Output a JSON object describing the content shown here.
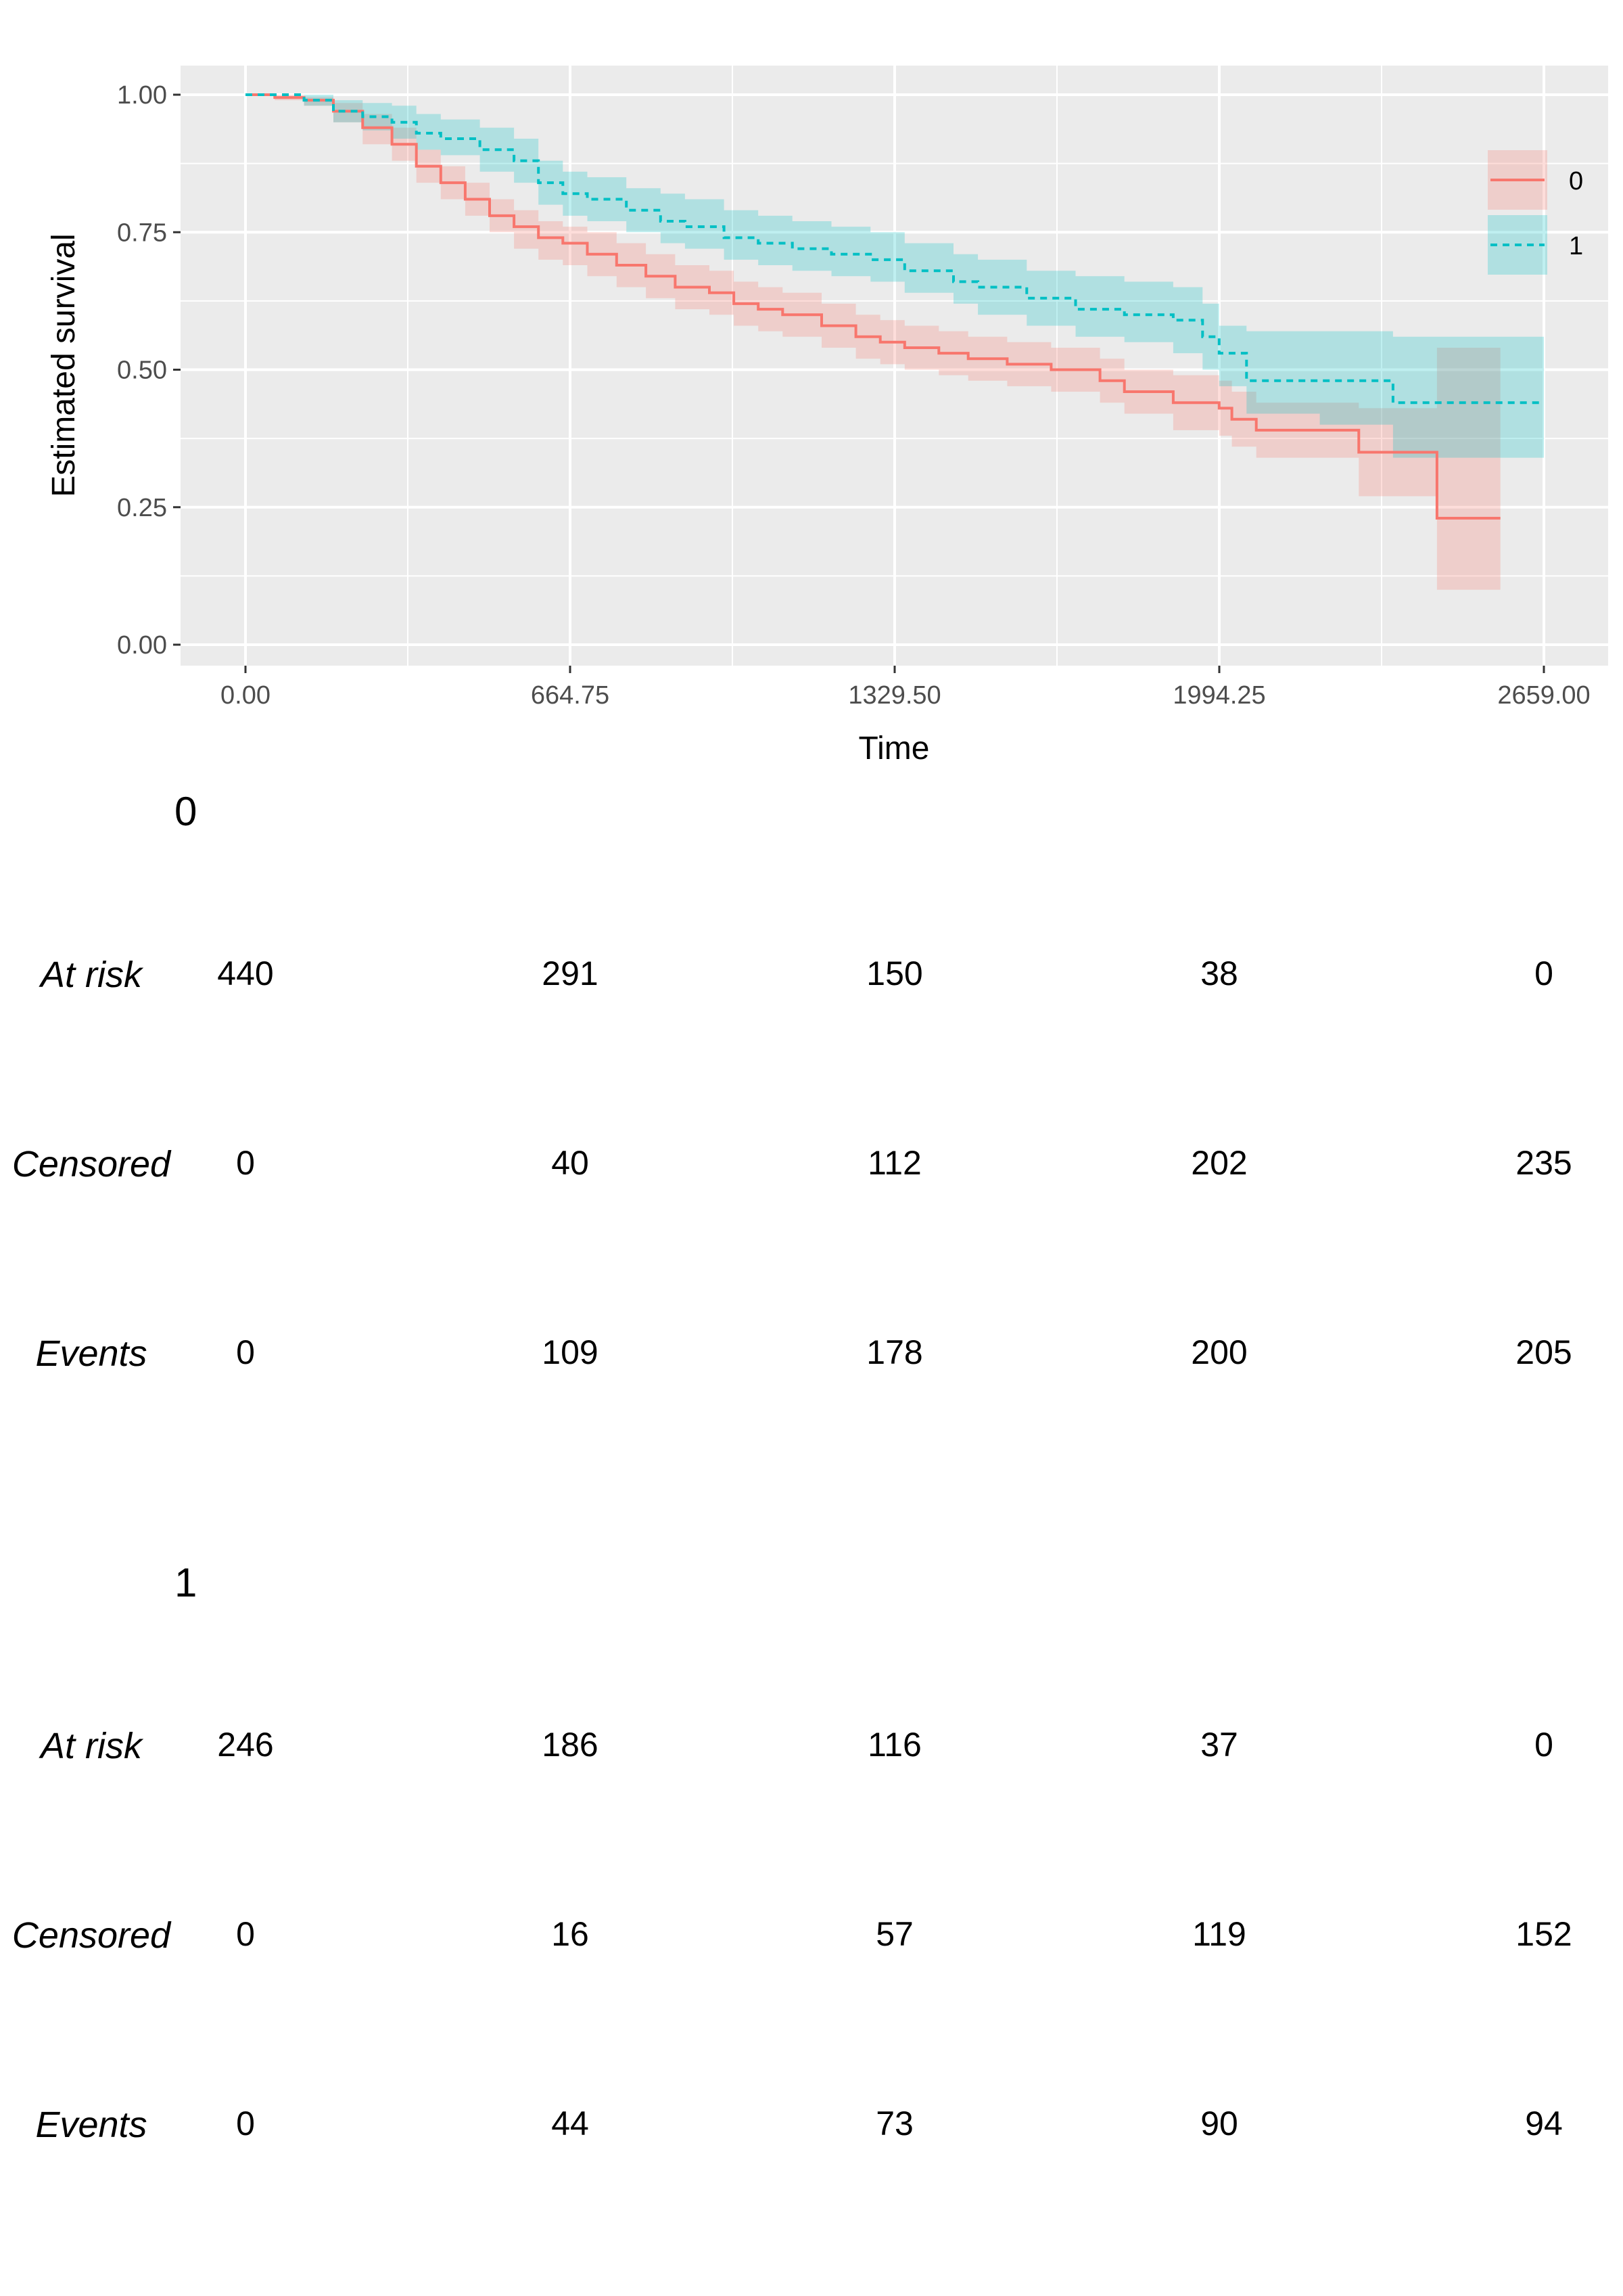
{
  "chart_data": {
    "type": "line",
    "title": "",
    "xlabel": "Time",
    "ylabel": "Estimated survival",
    "xlim": [
      0,
      2659
    ],
    "ylim": [
      0,
      1
    ],
    "x_ticks": [
      "0.00",
      "664.75",
      "1329.50",
      "1994.25",
      "2659.00"
    ],
    "x_tick_values": [
      0,
      664.75,
      1329.5,
      1994.25,
      2659
    ],
    "y_ticks": [
      "0.00",
      "0.25",
      "0.50",
      "0.75",
      "1.00"
    ],
    "y_tick_values": [
      0,
      0.25,
      0.5,
      0.75,
      1
    ],
    "grid": true,
    "legend_position": "right",
    "series": [
      {
        "name": "0",
        "color": "#F8766D",
        "line_style": "solid",
        "x": [
          0,
          60,
          120,
          180,
          240,
          300,
          350,
          400,
          450,
          500,
          550,
          600,
          650,
          700,
          760,
          820,
          880,
          950,
          1000,
          1050,
          1100,
          1180,
          1250,
          1300,
          1350,
          1420,
          1480,
          1560,
          1650,
          1750,
          1800,
          1900,
          1994,
          2020,
          2070,
          2280,
          2440,
          2570
        ],
        "y": [
          1.0,
          0.995,
          0.99,
          0.97,
          0.94,
          0.91,
          0.87,
          0.84,
          0.81,
          0.78,
          0.76,
          0.74,
          0.73,
          0.71,
          0.69,
          0.67,
          0.65,
          0.64,
          0.62,
          0.61,
          0.6,
          0.58,
          0.56,
          0.55,
          0.54,
          0.53,
          0.52,
          0.51,
          0.5,
          0.48,
          0.46,
          0.44,
          0.43,
          0.41,
          0.39,
          0.35,
          0.23,
          0.23
        ],
        "lower": [
          1.0,
          0.99,
          0.98,
          0.95,
          0.91,
          0.88,
          0.84,
          0.81,
          0.78,
          0.75,
          0.72,
          0.7,
          0.69,
          0.67,
          0.65,
          0.63,
          0.61,
          0.6,
          0.58,
          0.57,
          0.56,
          0.54,
          0.52,
          0.51,
          0.5,
          0.49,
          0.48,
          0.47,
          0.46,
          0.44,
          0.42,
          0.39,
          0.38,
          0.36,
          0.34,
          0.27,
          0.1,
          0.1
        ],
        "upper": [
          1.0,
          1.0,
          0.995,
          0.985,
          0.965,
          0.94,
          0.9,
          0.87,
          0.84,
          0.81,
          0.79,
          0.77,
          0.76,
          0.75,
          0.73,
          0.71,
          0.69,
          0.68,
          0.66,
          0.65,
          0.64,
          0.62,
          0.6,
          0.59,
          0.58,
          0.57,
          0.56,
          0.55,
          0.54,
          0.52,
          0.5,
          0.49,
          0.48,
          0.46,
          0.44,
          0.43,
          0.54,
          0.54
        ]
      },
      {
        "name": "1",
        "color": "#00BFC4",
        "line_style": "dashed",
        "x": [
          0,
          60,
          120,
          180,
          240,
          300,
          350,
          400,
          480,
          550,
          600,
          650,
          700,
          780,
          850,
          900,
          980,
          1050,
          1120,
          1200,
          1280,
          1350,
          1450,
          1500,
          1600,
          1700,
          1800,
          1900,
          1960,
          1994,
          2050,
          2200,
          2350,
          2659
        ],
        "y": [
          1.0,
          1.0,
          0.99,
          0.97,
          0.96,
          0.95,
          0.93,
          0.92,
          0.9,
          0.88,
          0.84,
          0.82,
          0.81,
          0.79,
          0.77,
          0.76,
          0.74,
          0.73,
          0.72,
          0.71,
          0.7,
          0.68,
          0.66,
          0.65,
          0.63,
          0.61,
          0.6,
          0.59,
          0.56,
          0.53,
          0.48,
          0.48,
          0.44,
          0.44
        ],
        "lower": [
          1.0,
          1.0,
          0.98,
          0.95,
          0.935,
          0.92,
          0.9,
          0.89,
          0.86,
          0.84,
          0.8,
          0.78,
          0.77,
          0.75,
          0.73,
          0.72,
          0.7,
          0.69,
          0.68,
          0.67,
          0.66,
          0.64,
          0.62,
          0.6,
          0.58,
          0.56,
          0.55,
          0.53,
          0.5,
          0.47,
          0.42,
          0.4,
          0.34,
          0.34
        ],
        "upper": [
          1.0,
          1.0,
          1.0,
          0.99,
          0.985,
          0.98,
          0.965,
          0.955,
          0.94,
          0.92,
          0.88,
          0.86,
          0.85,
          0.83,
          0.82,
          0.81,
          0.79,
          0.78,
          0.77,
          0.76,
          0.75,
          0.73,
          0.71,
          0.7,
          0.68,
          0.67,
          0.66,
          0.65,
          0.62,
          0.58,
          0.57,
          0.57,
          0.56,
          0.56
        ]
      }
    ]
  },
  "risk_table": {
    "times": [
      "0.00",
      "664.75",
      "1329.50",
      "1994.25",
      "2659.00"
    ],
    "groups": [
      {
        "name": "0",
        "rows": [
          {
            "label": "At risk",
            "values": [
              "440",
              "291",
              "150",
              "38",
              "0"
            ]
          },
          {
            "label": "Censored",
            "values": [
              "0",
              "40",
              "112",
              "202",
              "235"
            ]
          },
          {
            "label": "Events",
            "values": [
              "0",
              "109",
              "178",
              "200",
              "205"
            ]
          }
        ]
      },
      {
        "name": "1",
        "rows": [
          {
            "label": "At risk",
            "values": [
              "246",
              "186",
              "116",
              "37",
              "0"
            ]
          },
          {
            "label": "Censored",
            "values": [
              "0",
              "16",
              "57",
              "119",
              "152"
            ]
          },
          {
            "label": "Events",
            "values": [
              "0",
              "44",
              "73",
              "90",
              "94"
            ]
          }
        ]
      }
    ]
  }
}
